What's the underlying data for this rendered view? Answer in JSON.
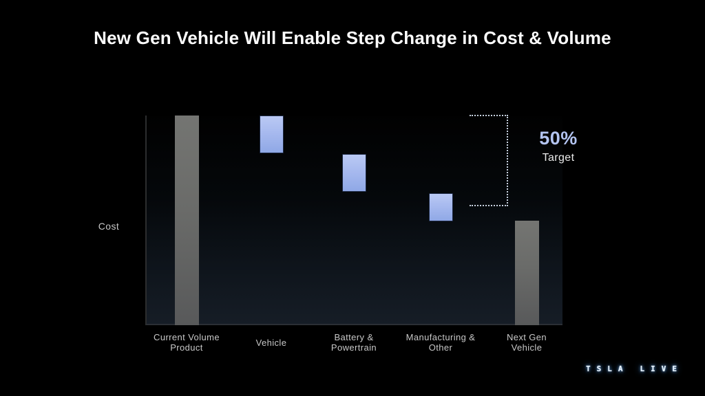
{
  "title": "New Gen Vehicle Will Enable Step Change in Cost & Volume",
  "y_axis_label": "Cost",
  "annotation": {
    "value": "50%",
    "label": "Target"
  },
  "watermark": {
    "word1": "TSLA",
    "word2": "LIVE"
  },
  "colors": {
    "background": "#000000",
    "bar_gray": "#6a6b69",
    "bar_blue_top": "#bac9f4",
    "bar_blue_bottom": "#8fa8e6",
    "accent_text": "#b3c4f1",
    "bracket_dots": "#c9d3e2"
  },
  "chart_data": {
    "type": "bar",
    "subtype": "waterfall",
    "title": "New Gen Vehicle Will Enable Step Change in Cost & Volume",
    "xlabel": "",
    "ylabel": "Cost",
    "ylim": [
      0,
      100
    ],
    "grid": false,
    "y_ticks": "none (unlabeled percent-of-current-cost axis)",
    "legend_position": "none",
    "annotation": {
      "value": "50%",
      "label": "Target",
      "meaning": "dotted bracket marks ~50% cost reduction target vs current volume product"
    },
    "categories": [
      "Current Volume Product",
      "Vehicle",
      "Battery & Powertrain",
      "Manufacturing & Other",
      "Next Gen Vehicle"
    ],
    "bars": [
      {
        "label": "Current Volume Product",
        "label_lines": [
          "Current Volume",
          "Product"
        ],
        "start": 0,
        "end": 100,
        "kind": "total",
        "color": "gray"
      },
      {
        "label": "Vehicle",
        "label_lines": [
          "Vehicle"
        ],
        "start": 82,
        "end": 100,
        "kind": "reduction",
        "color": "blue"
      },
      {
        "label": "Battery & Powertrain",
        "label_lines": [
          "Battery &",
          "Powertrain"
        ],
        "start": 63.5,
        "end": 81.5,
        "kind": "reduction",
        "color": "blue"
      },
      {
        "label": "Manufacturing & Other",
        "label_lines": [
          "Manufacturing &",
          "Other"
        ],
        "start": 49.5,
        "end": 63,
        "kind": "reduction",
        "color": "blue"
      },
      {
        "label": "Next Gen Vehicle",
        "label_lines": [
          "Next Gen",
          "Vehicle"
        ],
        "start": 0,
        "end": 50,
        "kind": "total",
        "color": "gray"
      }
    ]
  }
}
